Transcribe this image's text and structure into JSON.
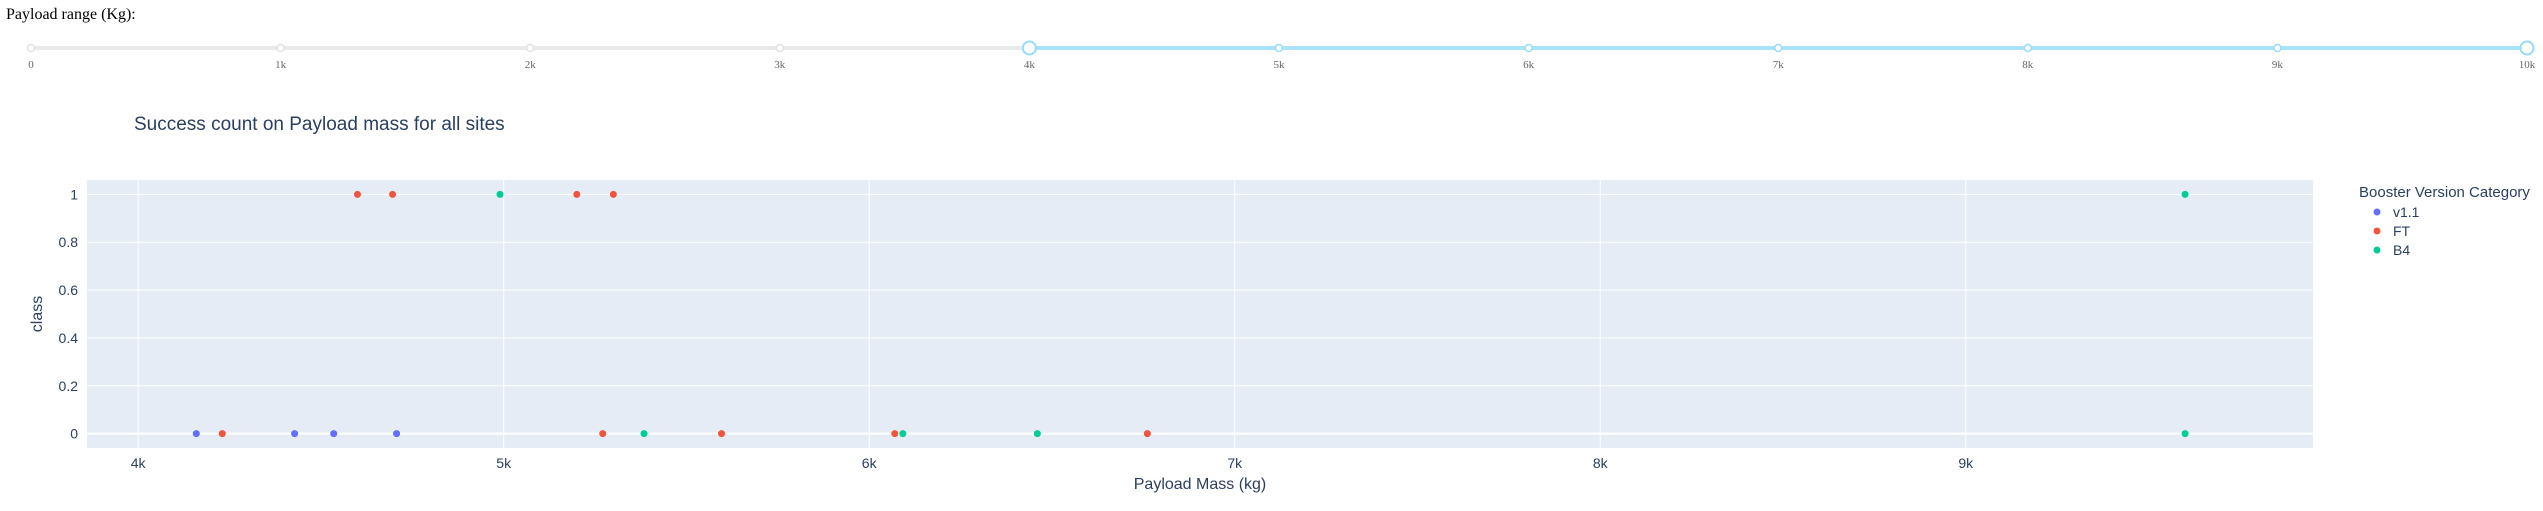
{
  "slider": {
    "label": "Payload range (Kg):",
    "min": 0,
    "max": 10000,
    "step": 1000,
    "value": [
      4000,
      10000
    ],
    "marks": [
      "0",
      "1k",
      "2k",
      "3k",
      "4k",
      "5k",
      "6k",
      "7k",
      "8k",
      "9k",
      "10k"
    ],
    "colors": {
      "track": "#e9e9e9",
      "active": "#abe2fb",
      "handle": "#96dbfa"
    }
  },
  "chart_data": {
    "type": "scatter",
    "title": "Success count on Payload mass for all sites",
    "xlabel": "Payload Mass (kg)",
    "ylabel": "class",
    "xlim": [
      3860,
      9950
    ],
    "ylim": [
      -0.06,
      1.06
    ],
    "x_ticks": [
      4000,
      5000,
      6000,
      7000,
      8000,
      9000
    ],
    "x_tick_labels": [
      "4k",
      "5k",
      "6k",
      "7k",
      "8k",
      "9k"
    ],
    "y_ticks": [
      0,
      0.2,
      0.4,
      0.6,
      0.8,
      1
    ],
    "y_tick_labels": [
      "0",
      "0.2",
      "0.4",
      "0.6",
      "0.8",
      "1"
    ],
    "grid": true,
    "legend_title": "Booster Version Category",
    "legend_position": "top-right",
    "colors": {
      "plot_bg": "#e5ecf6",
      "grid": "#ffffff",
      "text": "#2a3f5f"
    },
    "series": [
      {
        "name": "v1.1",
        "color": "#636efa",
        "x": [
          4159,
          4428,
          4535,
          4707
        ],
        "y": [
          0,
          0,
          0,
          0
        ]
      },
      {
        "name": "FT",
        "color": "#ef553b",
        "x": [
          4230,
          4600,
          4696,
          5200,
          5300,
          5271,
          5596,
          6070,
          6761
        ],
        "y": [
          0,
          1,
          1,
          1,
          1,
          0,
          0,
          0,
          0
        ]
      },
      {
        "name": "B4",
        "color": "#00cc96",
        "x": [
          4990,
          9600,
          5384,
          6092,
          6460,
          9600
        ],
        "y": [
          1,
          1,
          0,
          0,
          0,
          0
        ]
      }
    ]
  }
}
